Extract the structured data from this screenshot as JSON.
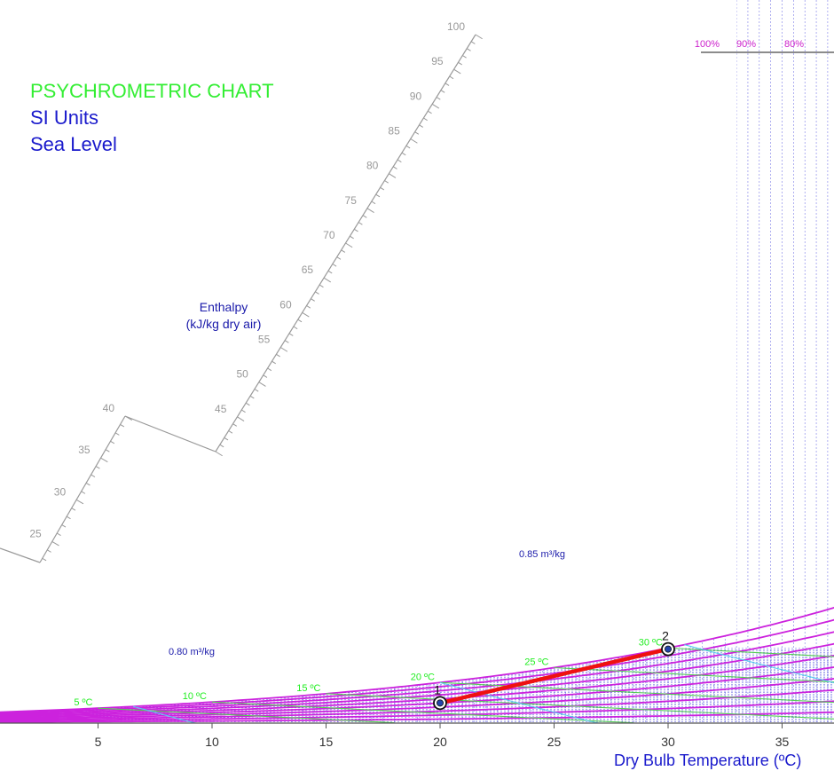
{
  "chart_data": {
    "type": "psychrometric",
    "title": "PSYCHROMETRIC CHART",
    "subtitle": [
      "SI Units",
      "Sea Level"
    ],
    "xlabel": "Dry Bulb Temperature (ºC)",
    "xlim": [
      0,
      37
    ],
    "x_ticks": [
      5,
      10,
      15,
      20,
      25,
      30,
      35
    ],
    "enthalpy_label": [
      "Enthalpy",
      "(kJ/kg dry air)"
    ],
    "enthalpy_ticks": [
      25,
      30,
      35,
      40,
      45,
      50,
      55,
      60,
      65,
      70,
      75,
      80,
      85,
      90,
      95,
      100
    ],
    "rh_labels": [
      "100%",
      "90%",
      "80%"
    ],
    "rh_curves": [
      1.0,
      0.9,
      0.8,
      0.7,
      0.6,
      0.5,
      0.4,
      0.3,
      0.2,
      0.1
    ],
    "wet_bulb_labels": [
      "5 ºC",
      "10 ºC",
      "15 ºC",
      "20 ºC",
      "25 ºC",
      "30 ºC"
    ],
    "wet_bulb_values": [
      5,
      10,
      15,
      20,
      25,
      30
    ],
    "specific_volume_labels": [
      "0.80 m³/kg",
      "0.85 m³/kg"
    ],
    "specific_volume_values": [
      0.8,
      0.85,
      0.9
    ],
    "process_points": [
      {
        "label": "1",
        "dry_bulb": 20,
        "wet_bulb": 13.8
      },
      {
        "label": "2",
        "dry_bulb": 30,
        "wet_bulb": 29.8
      }
    ],
    "colors": {
      "rh_curve": "#cc22dd",
      "rh_label": "#cc22cc",
      "wet_bulb": "#55cc55",
      "wet_bulb_label": "#22ee22",
      "specific_volume": "#55ccee",
      "grid": "#4444dd",
      "process_line": "#ee1111",
      "enthalpy_scale": "#999999",
      "axis_text": "#1a1acc"
    }
  }
}
